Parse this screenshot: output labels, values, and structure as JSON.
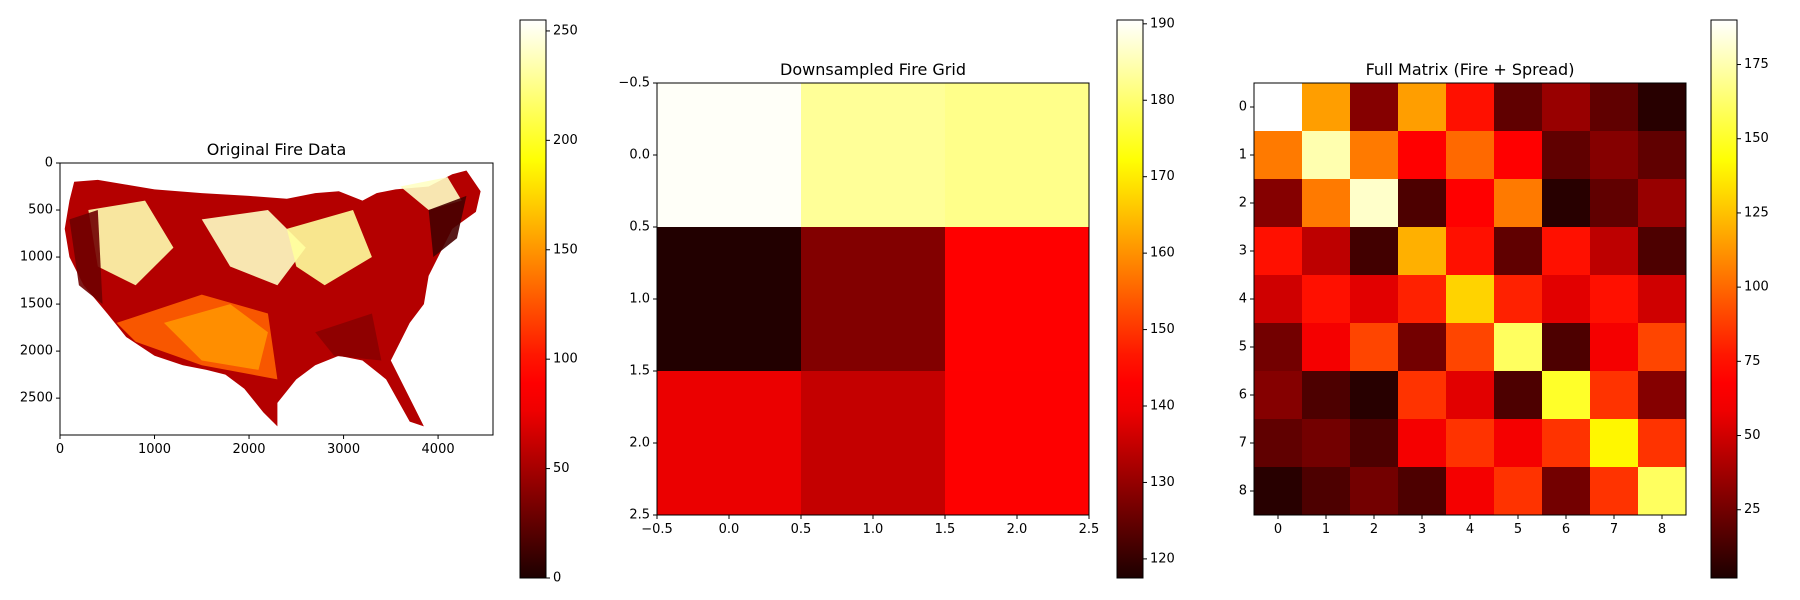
{
  "chart_data": [
    {
      "type": "heatmap",
      "title": "Original Fire Data",
      "xlim": [
        0,
        4581
      ],
      "ylim": [
        2892,
        0
      ],
      "x_ticks": [
        0,
        1000,
        2000,
        3000,
        4000
      ],
      "y_ticks": [
        0,
        500,
        1000,
        1500,
        2000,
        2500
      ],
      "colormap": "hot",
      "colorbar": {
        "min": 0,
        "max": 255,
        "ticks": [
          0,
          50,
          100,
          150,
          200,
          250
        ]
      },
      "description_values": "Raster map of fire data across the contiguous United States; values range 0–255"
    },
    {
      "type": "heatmap",
      "title": "Downsampled Fire Grid",
      "xlim": [
        -0.5,
        2.5
      ],
      "ylim": [
        2.5,
        -0.5
      ],
      "x_ticks": [
        -0.5,
        0.0,
        0.5,
        1.0,
        1.5,
        2.0,
        2.5
      ],
      "y_ticks": [
        -0.5,
        0.0,
        0.5,
        1.0,
        1.5,
        2.0,
        2.5
      ],
      "colormap": "hot",
      "colorbar": {
        "min": 117.5,
        "max": 190.5,
        "ticks": [
          120,
          130,
          140,
          150,
          160,
          170,
          180,
          190
        ]
      },
      "values": [
        [
          190,
          183,
          182
        ],
        [
          118,
          128,
          144
        ],
        [
          139,
          135,
          141
        ]
      ]
    },
    {
      "type": "heatmap",
      "title": "Full Matrix (Fire + Spread)",
      "xlim": [
        -0.5,
        8.5
      ],
      "ylim": [
        8.5,
        -0.5
      ],
      "x_ticks": [
        0,
        1,
        2,
        3,
        4,
        5,
        6,
        7,
        8
      ],
      "y_ticks": [
        0,
        1,
        2,
        3,
        4,
        5,
        6,
        7,
        8
      ],
      "colormap": "hot",
      "colorbar": {
        "min": 2,
        "max": 190,
        "ticks": [
          25,
          50,
          75,
          100,
          125,
          150,
          175
        ]
      },
      "values": [
        [
          190,
          115,
          30,
          115,
          75,
          20,
          35,
          20,
          5
        ],
        [
          105,
          175,
          105,
          65,
          100,
          65,
          20,
          30,
          20
        ],
        [
          30,
          105,
          180,
          15,
          65,
          105,
          5,
          20,
          35
        ],
        [
          75,
          45,
          12,
          120,
          75,
          20,
          75,
          45,
          15
        ],
        [
          50,
          75,
          55,
          80,
          130,
          80,
          55,
          75,
          50
        ],
        [
          25,
          60,
          90,
          25,
          90,
          160,
          15,
          60,
          90
        ],
        [
          30,
          15,
          5,
          85,
          55,
          15,
          150,
          85,
          30
        ],
        [
          20,
          25,
          15,
          60,
          85,
          60,
          85,
          140,
          85
        ],
        [
          5,
          15,
          25,
          15,
          60,
          85,
          25,
          85,
          160
        ]
      ]
    }
  ]
}
